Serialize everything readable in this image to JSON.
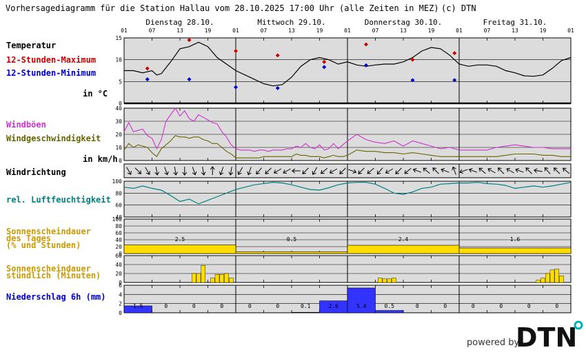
{
  "header": {
    "title": "Vorhersagediagramm für die Station Hallau vom 28.10.2025 17:00 Uhr (alle Zeiten in MEZ)",
    "copyright": "(c) DTN"
  },
  "days": [
    "Dienstag 28.10.",
    "Mittwoch 29.10.",
    "Donnerstag 30.10.",
    "Freitag 31.10."
  ],
  "hour_ticks": [
    "01",
    "07",
    "13",
    "19"
  ],
  "labels": {
    "temperature": "Temperatur",
    "max12": "12-Stunden-Maximum",
    "min12": "12-Stunden-Minimum",
    "temp_unit": "in °C",
    "gust": "Windböen",
    "wind": "Windgeschwindigkeit",
    "wind_unit": "in km/h",
    "winddir": "Windrichtung",
    "humidity": "rel. Luftfeuchtigkeit",
    "sun_day_1": "Sonnenscheindauer",
    "sun_day_2": "des Tages",
    "sun_day_3": "(% und Stunden)",
    "sun_hour_1": "Sonnenscheindauer",
    "sun_hour_2": "stündlich (Minuten)",
    "precip": "Niederschlag 6h (mm)"
  },
  "colors": {
    "panel_bg": "#dcdcdc",
    "temp_line": "#000000",
    "max": "#cc0000",
    "min": "#0000cc",
    "gust": "#cc33cc",
    "wind": "#666600",
    "humidity": "#008080",
    "sun": "#ffdd00",
    "precip": "#3333ff",
    "label_gust": "#cc33cc",
    "label_wind": "#666600",
    "label_humidity": "#008080",
    "label_sun": "#cc9900",
    "label_precip": "#0000cc"
  },
  "brand": {
    "powered_by": "powered by",
    "logo": "DTN",
    "logo_dot_color": "#00b3b3"
  },
  "chart_data": {
    "type": "line",
    "x_unit": "hours since 28.10. 01:00 MEZ",
    "x_range": [
      0,
      96
    ],
    "temperature": {
      "ylim": [
        0,
        15
      ],
      "yticks": [
        "0",
        "5",
        "10",
        "15"
      ],
      "hours": [
        0,
        2,
        4,
        6,
        7,
        8,
        10,
        12,
        14,
        16,
        18,
        20,
        22,
        24,
        26,
        28,
        30,
        32,
        34,
        36,
        38,
        40,
        42,
        44,
        46,
        48,
        50,
        52,
        54,
        56,
        58,
        60,
        62,
        64,
        66,
        68,
        70,
        72,
        74,
        76,
        78,
        80,
        82,
        84,
        86,
        88,
        90,
        92,
        94,
        96
      ],
      "values": [
        7.5,
        7.5,
        7.0,
        7.5,
        6.5,
        6.8,
        9.5,
        12.5,
        13.0,
        14.0,
        13.0,
        10.5,
        9.0,
        7.5,
        6.5,
        5.5,
        4.5,
        4.0,
        4.3,
        6.0,
        8.5,
        10.0,
        10.5,
        10.0,
        9.0,
        9.5,
        8.8,
        8.5,
        8.8,
        9.0,
        9.0,
        9.5,
        10.5,
        12.0,
        12.8,
        12.5,
        11.0,
        9.0,
        8.5,
        8.8,
        8.8,
        8.5,
        7.5,
        7.0,
        6.3,
        6.2,
        6.5,
        8.0,
        9.8,
        10.5
      ],
      "max12": {
        "hours": [
          5,
          14,
          24,
          33,
          43,
          52,
          62,
          71
        ],
        "values": [
          8.0,
          14.5,
          12.0,
          11.0,
          9.5,
          13.5,
          10.0,
          11.5
        ]
      },
      "min12": {
        "hours": [
          5,
          14,
          24,
          33,
          43,
          52,
          62,
          71
        ],
        "values": [
          5.5,
          5.5,
          3.7,
          3.5,
          8.3,
          8.7,
          5.3,
          5.3
        ]
      }
    },
    "wind": {
      "ylim": [
        0,
        40
      ],
      "yticks": [
        "0",
        "10",
        "20",
        "30",
        "40"
      ],
      "hours": [
        0,
        1,
        2,
        3,
        4,
        5,
        6,
        7,
        8,
        9,
        10,
        11,
        12,
        13,
        14,
        15,
        16,
        17,
        18,
        19,
        20,
        21,
        22,
        23,
        24,
        25,
        26,
        27,
        28,
        29,
        30,
        31,
        32,
        33,
        34,
        35,
        36,
        37,
        38,
        39,
        40,
        41,
        42,
        43,
        44,
        45,
        46,
        47,
        48,
        50,
        52,
        54,
        56,
        58,
        60,
        62,
        64,
        66,
        68,
        70,
        72,
        74,
        76,
        78,
        80,
        82,
        84,
        86,
        88,
        90,
        92,
        94,
        96
      ],
      "gust": [
        22,
        29,
        22,
        23,
        24,
        19,
        17,
        9,
        16,
        30,
        35,
        40,
        34,
        38,
        32,
        30,
        35,
        33,
        31,
        29,
        28,
        22,
        18,
        12,
        9,
        8,
        8,
        8,
        7,
        8,
        8,
        7,
        8,
        8,
        8,
        9,
        9,
        11,
        10,
        13,
        10,
        9,
        12,
        8,
        9,
        13,
        9,
        12,
        15,
        20,
        16,
        14,
        13,
        15,
        11,
        15,
        13,
        11,
        9,
        10,
        8,
        8,
        8,
        8,
        10,
        11,
        12,
        11,
        10,
        10,
        9,
        9,
        9
      ],
      "speed": [
        8,
        13,
        10,
        12,
        11,
        10,
        6,
        3,
        9,
        12,
        15,
        19,
        18,
        18,
        17,
        18,
        18,
        16,
        15,
        13,
        13,
        10,
        7,
        5,
        2,
        2,
        2,
        2,
        2,
        2,
        3,
        3,
        3,
        3,
        3,
        3,
        3,
        5,
        4,
        4,
        3,
        3,
        3,
        2,
        3,
        4,
        3,
        3,
        4,
        8,
        7,
        7,
        6,
        6,
        5,
        6,
        5,
        4,
        3,
        3,
        3,
        3,
        3,
        3,
        3,
        4,
        5,
        5,
        5,
        4,
        4,
        3,
        3
      ]
    },
    "wind_direction": {
      "hours": [
        1,
        3,
        5,
        7,
        9,
        11,
        13,
        15,
        17,
        19,
        21,
        23,
        25,
        27,
        29,
        31,
        33,
        35,
        37,
        39,
        41,
        43,
        45,
        47,
        49,
        51,
        53,
        55,
        57,
        59,
        61,
        63,
        65,
        67,
        69,
        71,
        73,
        75,
        77,
        79,
        81,
        83,
        85,
        87,
        89,
        91,
        93,
        95
      ],
      "angles_deg": [
        60,
        45,
        60,
        80,
        70,
        80,
        90,
        70,
        80,
        270,
        110,
        100,
        120,
        110,
        130,
        135,
        150,
        150,
        180,
        135,
        120,
        140,
        150,
        135,
        20,
        135,
        140,
        130,
        150,
        135,
        140,
        200,
        220,
        225,
        200,
        250,
        160,
        200,
        220,
        210,
        225,
        210,
        200,
        225,
        190,
        230,
        225,
        220
      ]
    },
    "humidity": {
      "ylim": [
        40,
        100
      ],
      "yticks": [
        "40",
        "60",
        "80",
        "100"
      ],
      "hours": [
        0,
        2,
        4,
        6,
        8,
        10,
        12,
        14,
        16,
        18,
        20,
        22,
        24,
        26,
        28,
        30,
        32,
        34,
        36,
        38,
        40,
        42,
        44,
        46,
        48,
        50,
        52,
        54,
        56,
        58,
        60,
        62,
        64,
        66,
        68,
        70,
        72,
        74,
        76,
        78,
        80,
        82,
        84,
        86,
        88,
        90,
        92,
        94,
        96
      ],
      "values": [
        90,
        88,
        92,
        88,
        85,
        76,
        66,
        70,
        62,
        68,
        74,
        80,
        86,
        90,
        94,
        96,
        98,
        97,
        94,
        90,
        86,
        85,
        89,
        94,
        97,
        98,
        98,
        95,
        88,
        80,
        78,
        82,
        88,
        90,
        95,
        96,
        97,
        97,
        98,
        96,
        95,
        93,
        88,
        90,
        92,
        90,
        92,
        95,
        98
      ]
    },
    "sun_daily": {
      "ylim": [
        0,
        100
      ],
      "yticks": [
        "0",
        "20",
        "40",
        "60",
        "80",
        "100"
      ],
      "days": [
        "Dienstag 28.10.",
        "Mittwoch 29.10.",
        "Donnerstag 30.10.",
        "Freitag 31.10."
      ],
      "percent": [
        25,
        5,
        24,
        16
      ],
      "hours": [
        "2.5",
        "0.5",
        "2.4",
        "1.6"
      ]
    },
    "sun_hourly": {
      "ylim": [
        0,
        60
      ],
      "yticks": [
        "0",
        "20",
        "40",
        "60"
      ],
      "hours": [
        8,
        9,
        10,
        11,
        12,
        13,
        14,
        15,
        16,
        17,
        18,
        19,
        20,
        21,
        22,
        23,
        24,
        25,
        26,
        27,
        28,
        29,
        30,
        31,
        32,
        33,
        34,
        35,
        36,
        37,
        38,
        39,
        40,
        41,
        42,
        43,
        44,
        45,
        46,
        47,
        48,
        49,
        50,
        51,
        52,
        53,
        54,
        55,
        56,
        57,
        58,
        59,
        60,
        61,
        62,
        63,
        64,
        65,
        66,
        67,
        68,
        69,
        70,
        71,
        72,
        73,
        74,
        75,
        76,
        77,
        78,
        79,
        80,
        81,
        82,
        83,
        84,
        85,
        86,
        87,
        88,
        89,
        90,
        91,
        92,
        93,
        94,
        95
      ],
      "minutes": [
        0,
        0,
        0,
        0,
        0,
        0,
        0,
        20,
        20,
        38,
        0,
        10,
        18,
        18,
        20,
        10,
        0,
        0,
        0,
        0,
        0,
        0,
        0,
        0,
        0,
        0,
        0,
        0,
        0,
        0,
        0,
        0,
        0,
        0,
        0,
        0,
        0,
        0,
        0,
        0,
        0,
        0,
        0,
        0,
        0,
        0,
        0,
        10,
        8,
        8,
        10,
        0,
        0,
        0,
        0,
        0,
        0,
        0,
        0,
        0,
        0,
        0,
        0,
        0,
        0,
        0,
        0,
        0,
        0,
        0,
        0,
        0,
        0,
        0,
        0,
        0,
        0,
        0,
        0,
        0,
        0,
        5,
        10,
        20,
        28,
        30,
        15,
        0
      ]
    },
    "precip_6h": {
      "ylim": [
        0,
        6
      ],
      "yticks": [
        "0",
        "2",
        "4",
        "6"
      ],
      "values": [
        1.5,
        0,
        0,
        0,
        0,
        0,
        0.1,
        2.6,
        5.4,
        0.5,
        0,
        0,
        0,
        0,
        0,
        0
      ],
      "labels": [
        "1.5",
        "0",
        "0",
        "0",
        "0",
        "0",
        "0.1",
        "2.6",
        "5.4",
        "0.5",
        "0",
        "0",
        "0",
        "0",
        "0",
        "0"
      ]
    }
  }
}
